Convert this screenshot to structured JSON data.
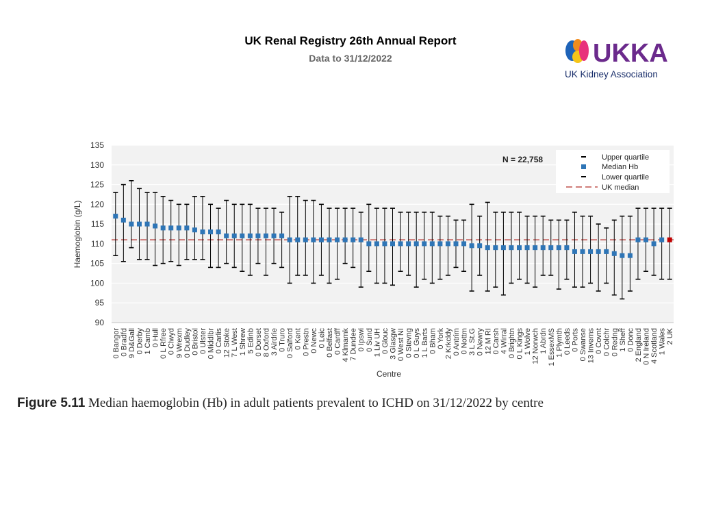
{
  "header": {
    "title": "UK Renal Registry 26th Annual Report",
    "subtitle": "Data to 31/12/2022"
  },
  "logo": {
    "wordmark": "UKKA",
    "name": "UK Kidney Association",
    "colors": {
      "purple": "#6b2a8c",
      "blue": "#1e63b8",
      "orange": "#f28c1e",
      "yellow": "#f5c518",
      "pink": "#e8327c",
      "navy": "#1a2f6b"
    }
  },
  "caption": {
    "label": "Figure 5.11",
    "text": " Median haemoglobin (Hb) in adult patients prevalent to ICHD on 31/12/2022 by centre"
  },
  "chart_data": {
    "type": "errorbar",
    "ylabel": "Haemoglobin (g/L)",
    "xlabel": "Centre",
    "ylim": [
      90,
      135
    ],
    "yticks": [
      90,
      95,
      100,
      105,
      110,
      115,
      120,
      125,
      130,
      135
    ],
    "n_label": "N = 22,758",
    "uk_median": 111,
    "legend": [
      "Upper quartile",
      "Median Hb",
      "Lower quartile",
      "UK median"
    ],
    "colors": {
      "median": "#2e75b6",
      "uk": "#c00000",
      "uk_median_line": "#c0504d",
      "whisker": "#000000",
      "plot_bg": "#f2f2f2",
      "grid": "#ffffff"
    },
    "centres": [
      {
        "label": "0 Bangor",
        "lq": 107,
        "median": 117,
        "uq": 123
      },
      {
        "label": "0 Bradfd",
        "lq": 105.5,
        "median": 116,
        "uq": 125
      },
      {
        "label": "9 D&Gall",
        "lq": 109,
        "median": 115,
        "uq": 126
      },
      {
        "label": "0 Derby",
        "lq": 106,
        "median": 115,
        "uq": 124
      },
      {
        "label": "1 Camb",
        "lq": 106,
        "median": 115,
        "uq": 123
      },
      {
        "label": "0 Hull",
        "lq": 104.5,
        "median": 114.5,
        "uq": 123
      },
      {
        "label": "0 L Rfree",
        "lq": 105,
        "median": 114,
        "uq": 122
      },
      {
        "label": "0 Clwyd",
        "lq": 105.5,
        "median": 114,
        "uq": 121
      },
      {
        "label": "9 Wrexm",
        "lq": 104.5,
        "median": 114,
        "uq": 120
      },
      {
        "label": "0 Dudley",
        "lq": 106,
        "median": 114,
        "uq": 120
      },
      {
        "label": "0 Bristol",
        "lq": 106,
        "median": 113.5,
        "uq": 122
      },
      {
        "label": "0 Ulster",
        "lq": 106,
        "median": 113,
        "uq": 122
      },
      {
        "label": "0 Middlbr",
        "lq": 104,
        "median": 113,
        "uq": 120
      },
      {
        "label": "0 Carlis",
        "lq": 104,
        "median": 113,
        "uq": 119
      },
      {
        "label": "12 Stoke",
        "lq": 105,
        "median": 112,
        "uq": 121
      },
      {
        "label": "7 L West",
        "lq": 104,
        "median": 112,
        "uq": 120
      },
      {
        "label": "1 Shrew",
        "lq": 103,
        "median": 112,
        "uq": 120
      },
      {
        "label": "5 Edinb",
        "lq": 102,
        "median": 112,
        "uq": 120
      },
      {
        "label": "0 Dorset",
        "lq": 105,
        "median": 112,
        "uq": 119
      },
      {
        "label": "8 Oxford",
        "lq": 102,
        "median": 112,
        "uq": 119
      },
      {
        "label": "3 Airdrie",
        "lq": 105,
        "median": 112,
        "uq": 119
      },
      {
        "label": "0 Truro",
        "lq": 104,
        "median": 112,
        "uq": 118
      },
      {
        "label": "0 Salford",
        "lq": 100,
        "median": 111,
        "uq": 122
      },
      {
        "label": "0 Kent",
        "lq": 102,
        "median": 111,
        "uq": 122
      },
      {
        "label": "0 Prestn",
        "lq": 102,
        "median": 111,
        "uq": 121
      },
      {
        "label": "0 Newc",
        "lq": 100,
        "median": 111,
        "uq": 121
      },
      {
        "label": "0 Leic",
        "lq": 102,
        "median": 111,
        "uq": 120
      },
      {
        "label": "0 Belfast",
        "lq": 100,
        "median": 111,
        "uq": 119
      },
      {
        "label": "0 Cardff",
        "lq": 101,
        "median": 111,
        "uq": 119
      },
      {
        "label": "4 Klmarnk",
        "lq": 105,
        "median": 111,
        "uq": 119
      },
      {
        "label": "7 Dundee",
        "lq": 104,
        "median": 111,
        "uq": 119
      },
      {
        "label": "0 Ipswi",
        "lq": 99,
        "median": 111,
        "uq": 118
      },
      {
        "label": "0 Sund",
        "lq": 103,
        "median": 110,
        "uq": 120
      },
      {
        "label": "1 Liv UH",
        "lq": 100,
        "median": 110,
        "uq": 119
      },
      {
        "label": "0 Glouc",
        "lq": 100,
        "median": 110,
        "uq": 119
      },
      {
        "label": "3 Glasgw",
        "lq": 99.5,
        "median": 110,
        "uq": 119
      },
      {
        "label": "0 West NI",
        "lq": 103,
        "median": 110,
        "uq": 118
      },
      {
        "label": "0 Stevng",
        "lq": 102,
        "median": 110,
        "uq": 118
      },
      {
        "label": "0 L Guys",
        "lq": 99,
        "median": 110,
        "uq": 118
      },
      {
        "label": "1 L Barts",
        "lq": 101,
        "median": 110,
        "uq": 118
      },
      {
        "label": "0 Bham",
        "lq": 100,
        "median": 110,
        "uq": 118
      },
      {
        "label": "0 York",
        "lq": 101,
        "median": 110,
        "uq": 117
      },
      {
        "label": "2 Krkcldy",
        "lq": 102,
        "median": 110,
        "uq": 117
      },
      {
        "label": "0 Antrim",
        "lq": 104,
        "median": 110,
        "uq": 116
      },
      {
        "label": "0 Nottm",
        "lq": 103,
        "median": 110,
        "uq": 116
      },
      {
        "label": "3 L St.G",
        "lq": 98,
        "median": 109.5,
        "uq": 120
      },
      {
        "label": "0 Newry",
        "lq": 102,
        "median": 109.5,
        "uq": 117
      },
      {
        "label": "12 M RI",
        "lq": 98,
        "median": 109,
        "uq": 120.5
      },
      {
        "label": "0 Carsh",
        "lq": 99,
        "median": 109,
        "uq": 118
      },
      {
        "label": "4 Wirral",
        "lq": 97,
        "median": 109,
        "uq": 118
      },
      {
        "label": "0 Brightn",
        "lq": 100,
        "median": 109,
        "uq": 118
      },
      {
        "label": "0 L Kings",
        "lq": 101,
        "median": 109,
        "uq": 118
      },
      {
        "label": "1 Wolve",
        "lq": 100,
        "median": 109,
        "uq": 117
      },
      {
        "label": "12 Norwch",
        "lq": 99,
        "median": 109,
        "uq": 117
      },
      {
        "label": "1 Abrdn",
        "lq": 102,
        "median": 109,
        "uq": 117
      },
      {
        "label": "1 EssexMS",
        "lq": 102,
        "median": 109,
        "uq": 116
      },
      {
        "label": "1 Plymth",
        "lq": 98.5,
        "median": 109,
        "uq": 116
      },
      {
        "label": "0 Leeds",
        "lq": 101,
        "median": 109,
        "uq": 116
      },
      {
        "label": "0 Ports",
        "lq": 99,
        "median": 108,
        "uq": 118
      },
      {
        "label": "0 Swanse",
        "lq": 99,
        "median": 108,
        "uq": 117
      },
      {
        "label": "13 Inverns",
        "lq": 100,
        "median": 108,
        "uq": 117
      },
      {
        "label": "0 Covnt",
        "lq": 98,
        "median": 108,
        "uq": 115
      },
      {
        "label": "0 Colchr",
        "lq": 100,
        "median": 108,
        "uq": 114
      },
      {
        "label": "0 Redng",
        "lq": 97,
        "median": 107.5,
        "uq": 116
      },
      {
        "label": "1 Sheff",
        "lq": 96,
        "median": 107,
        "uq": 117
      },
      {
        "label": "0 Donc",
        "lq": 98,
        "median": 107,
        "uq": 117
      },
      {
        "label": "2 England",
        "lq": 101,
        "median": 111,
        "uq": 119
      },
      {
        "label": "0 N Ireland",
        "lq": 103,
        "median": 111,
        "uq": 119
      },
      {
        "label": "4 Scotland",
        "lq": 102,
        "median": 110,
        "uq": 119
      },
      {
        "label": "1 Wales",
        "lq": 101,
        "median": 111,
        "uq": 119
      },
      {
        "label": "2 UK",
        "lq": 101,
        "median": 111,
        "uq": 119
      }
    ]
  }
}
